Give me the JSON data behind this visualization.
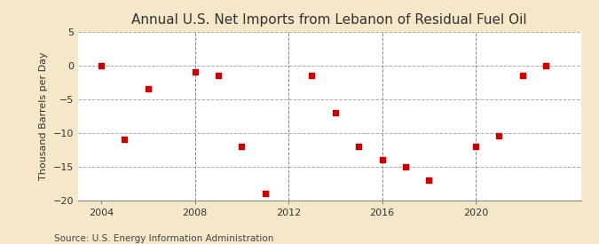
{
  "title": "Annual U.S. Net Imports from Lebanon of Residual Fuel Oil",
  "ylabel": "Thousand Barrels per Day",
  "source": "Source: U.S. Energy Information Administration",
  "fig_background_color": "#f5e8c8",
  "plot_background_color": "#ffffff",
  "data_points": [
    {
      "year": 2004,
      "value": -0.1
    },
    {
      "year": 2005,
      "value": -11.0
    },
    {
      "year": 2006,
      "value": -3.5
    },
    {
      "year": 2008,
      "value": -1.0
    },
    {
      "year": 2009,
      "value": -1.5
    },
    {
      "year": 2010,
      "value": -12.0
    },
    {
      "year": 2011,
      "value": -19.0
    },
    {
      "year": 2013,
      "value": -1.5
    },
    {
      "year": 2014,
      "value": -7.0
    },
    {
      "year": 2015,
      "value": -12.0
    },
    {
      "year": 2016,
      "value": -14.0
    },
    {
      "year": 2017,
      "value": -15.0
    },
    {
      "year": 2018,
      "value": -17.0
    },
    {
      "year": 2020,
      "value": -12.0
    },
    {
      "year": 2021,
      "value": -10.5
    },
    {
      "year": 2022,
      "value": -1.5
    },
    {
      "year": 2023,
      "value": -0.1
    }
  ],
  "marker_color": "#cc0000",
  "marker_size": 16,
  "ylim": [
    -20,
    5
  ],
  "yticks": [
    -20,
    -15,
    -10,
    -5,
    0,
    5
  ],
  "xlim": [
    2003.0,
    2024.5
  ],
  "xticks": [
    2004,
    2008,
    2012,
    2016,
    2020
  ],
  "vlines": [
    2008,
    2012,
    2016,
    2020
  ],
  "hgrid_color": "#aaaaaa",
  "vgrid_color": "#888888",
  "title_fontsize": 11,
  "label_fontsize": 8,
  "tick_fontsize": 8,
  "source_fontsize": 7.5
}
